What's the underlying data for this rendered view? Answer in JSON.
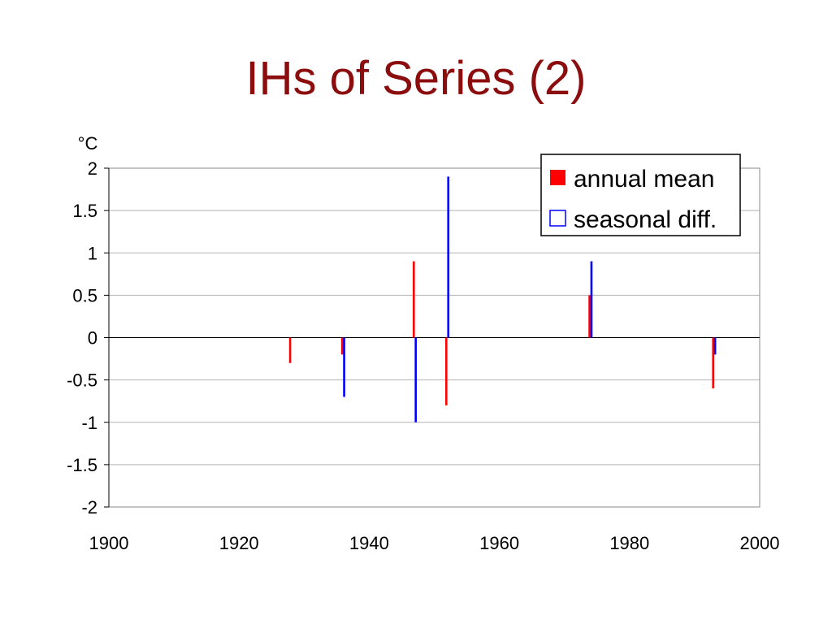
{
  "slide": {
    "title": "IHs of Series (2)",
    "title_color": "#8b0d0d"
  },
  "chart_data": {
    "type": "bar",
    "ylabel": "°C",
    "xlim": [
      1900,
      2000
    ],
    "ylim": [
      -2,
      2
    ],
    "x_ticks": [
      "1900",
      "1920",
      "1940",
      "1960",
      "1980",
      "2000"
    ],
    "y_ticks": [
      "2",
      "1.5",
      "1",
      "0.5",
      "0",
      "-0.5",
      "-1",
      "-1.5",
      "-2"
    ],
    "grid": true,
    "legend_position": "top-right",
    "series": [
      {
        "name": "annual mean",
        "color": "#ff0000",
        "legend_marker": "filled-square",
        "points": [
          {
            "x": 1928,
            "y": -0.3
          },
          {
            "x": 1936,
            "y": -0.2
          },
          {
            "x": 1947,
            "y": 0.9
          },
          {
            "x": 1952,
            "y": -0.8
          },
          {
            "x": 1974,
            "y": 0.5
          },
          {
            "x": 1993,
            "y": -0.6
          }
        ]
      },
      {
        "name": "seasonal diff.",
        "color": "#0000ff",
        "legend_marker": "hollow-square",
        "points": [
          {
            "x": 1936,
            "y": -0.7
          },
          {
            "x": 1947,
            "y": -1.0
          },
          {
            "x": 1952,
            "y": 1.9
          },
          {
            "x": 1974,
            "y": 0.9
          },
          {
            "x": 1993,
            "y": -0.2
          }
        ]
      }
    ]
  }
}
